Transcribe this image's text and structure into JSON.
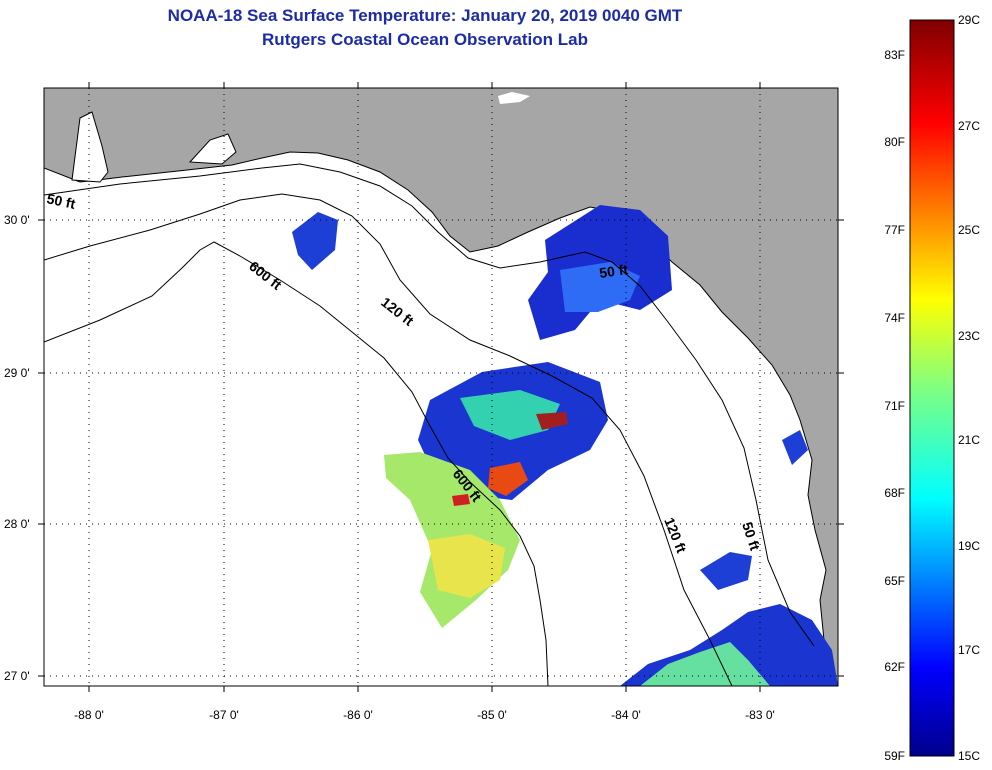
{
  "title": {
    "line1": "NOAA-18 Sea Surface Temperature:  January 20, 2019 0040 GMT",
    "line2": "Rutgers Coastal Ocean Observation Lab"
  },
  "axes": {
    "lat_ticks": [
      "30 0'",
      "29 0'",
      "28 0'",
      "27 0'"
    ],
    "lon_ticks": [
      "-88 0'",
      "-87 0'",
      "-86 0'",
      "-85 0'",
      "-84 0'",
      "-83 0'"
    ]
  },
  "contours": [
    {
      "name": "isobath-50-west",
      "label": "50 ft"
    },
    {
      "name": "isobath-120-west",
      "label": "120 ft"
    },
    {
      "name": "isobath-600-north",
      "label": "600 ft"
    },
    {
      "name": "isobath-600-south",
      "label": "600 ft"
    },
    {
      "name": "isobath-120-east",
      "label": "120 ft"
    },
    {
      "name": "isobath-50-east",
      "label": "50 ft"
    },
    {
      "name": "isobath-50-bigbend",
      "label": "50 ft"
    }
  ],
  "colorbar": {
    "f_labels": [
      "83F",
      "80F",
      "77F",
      "74F",
      "71F",
      "68F",
      "65F",
      "62F",
      "59F"
    ],
    "c_labels": [
      "29C",
      "27C",
      "25C",
      "23C",
      "21C",
      "19C",
      "17C",
      "15C"
    ]
  },
  "colors": {
    "land": "#a6a6a6",
    "water": "#ffffff",
    "title": "#1c2ca8"
  }
}
